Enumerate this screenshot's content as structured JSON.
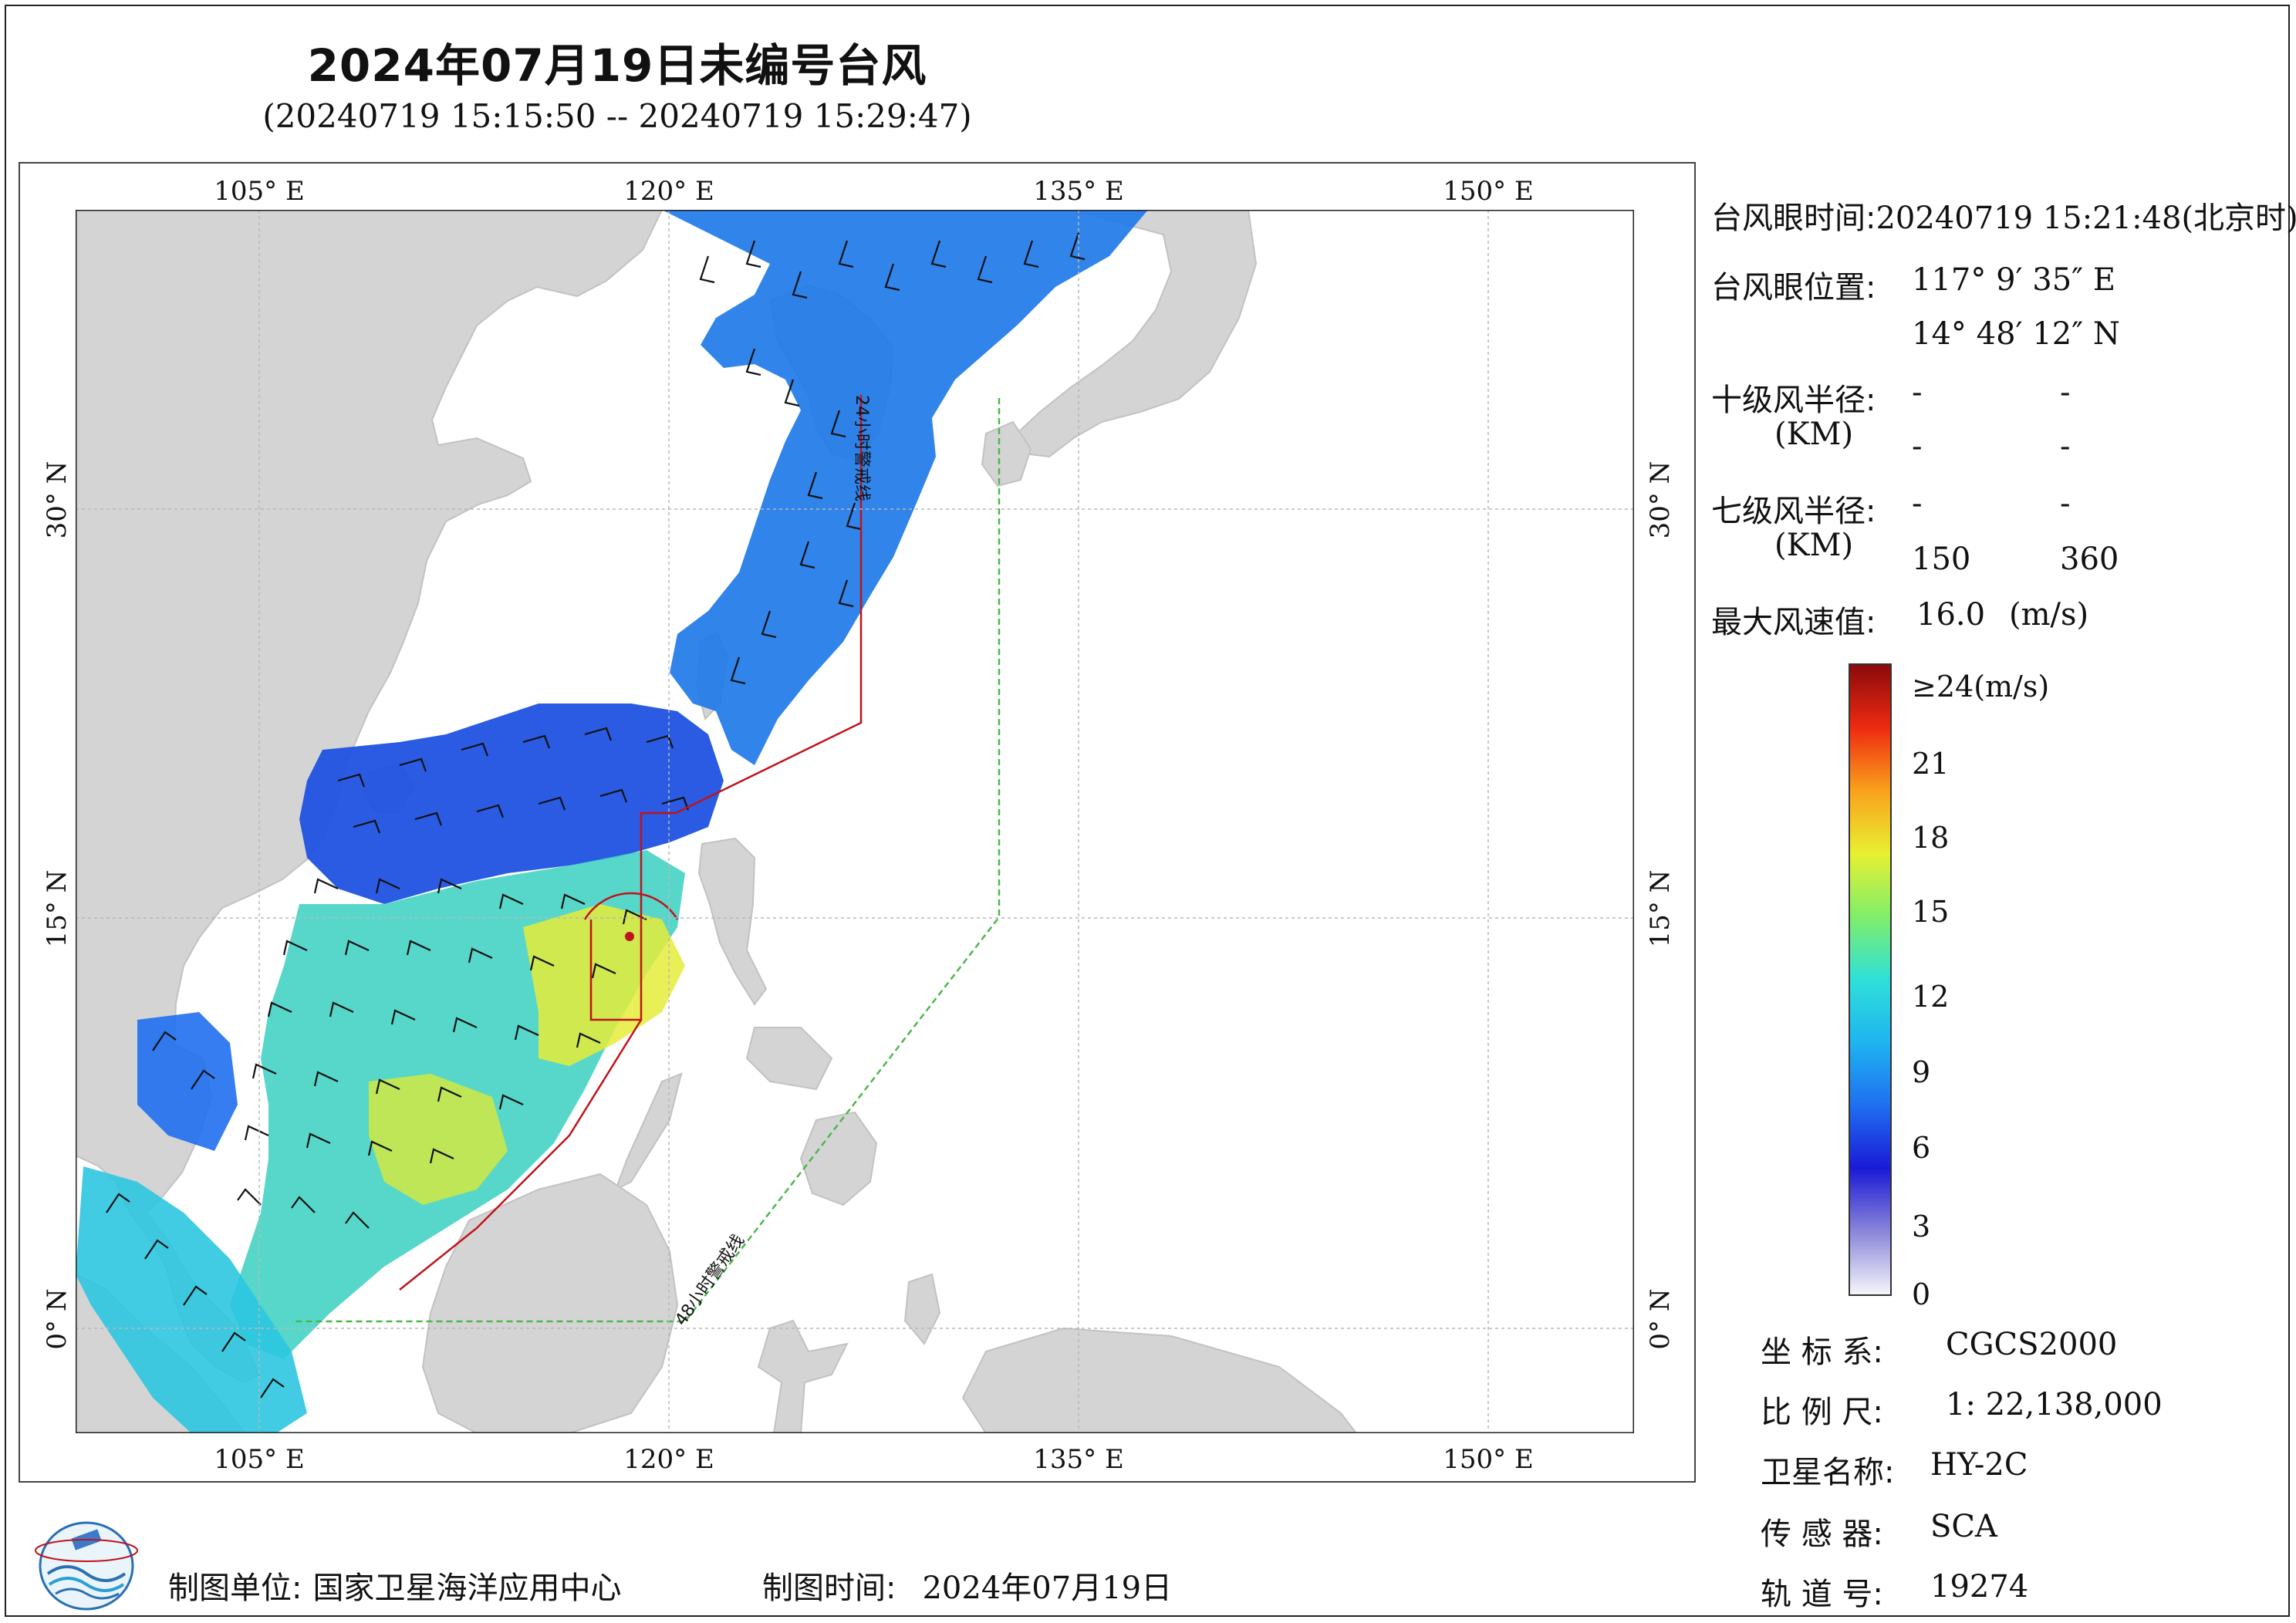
{
  "header": {
    "title": "2024年07月19日未编号台风",
    "subtitle": "(20240719 15:15:50 -- 20240719 15:29:47)"
  },
  "map": {
    "lon_ticks": [
      "105° E",
      "120° E",
      "135° E",
      "150° E"
    ],
    "lat_ticks": [
      "30° N",
      "15° N",
      "0° N"
    ],
    "lon_range": [
      97,
      154
    ],
    "lat_range": [
      -4,
      41
    ],
    "warning_line_24h": "24小时警戒线",
    "warning_line_48h": "48小时警戒线",
    "colors": {
      "land": "#d4d4d4",
      "ocean": "#ffffff",
      "line_24h": "#c0131b",
      "line_48h": "#4cb84c"
    }
  },
  "info": {
    "eye_time_label": "台风眼时间:",
    "eye_time_value": "20240719 15:21:48(北京时)",
    "eye_pos_label": "台风眼位置:",
    "eye_lon": "117° 9′ 35″ E",
    "eye_lat": "14° 48′ 12″ N",
    "r10_label": "十级风半径:",
    "r10_unit": "(KM)",
    "r10_values": [
      "-",
      "-",
      "-",
      "-"
    ],
    "r7_label": "七级风半径:",
    "r7_unit": "(KM)",
    "r7_values": [
      "-",
      "-",
      "150",
      "360"
    ],
    "max_wind_label": "最大风速值:",
    "max_wind_value": "16.0",
    "max_wind_unit": "(m/s)"
  },
  "colorbar": {
    "labels": [
      "≥24(m/s)",
      "21",
      "18",
      "15",
      "12",
      "9",
      "6",
      "3",
      "0"
    ],
    "stops": [
      "#f5f5fb",
      "#8a86d8",
      "#1a1ad6",
      "#1f6ff0",
      "#1fb4f0",
      "#2fe0d8",
      "#80ee6a",
      "#e8f032",
      "#f9a21c",
      "#ee2a12",
      "#8b0a0a"
    ]
  },
  "meta": {
    "crs_label": "坐 标 系:",
    "crs_value": "CGCS2000",
    "scale_label": "比 例 尺:",
    "scale_value": "1: 22,138,000",
    "satellite_label": "卫星名称:",
    "satellite_value": "HY-2C",
    "sensor_label": "传 感 器:",
    "sensor_value": "SCA",
    "orbit_label": "轨 道 号:",
    "orbit_value": "19274"
  },
  "footer": {
    "org_label": "制图单位:",
    "org_value": "国家卫星海洋应用中心",
    "date_label": "制图时间:",
    "date_value": "2024年07月19日"
  }
}
